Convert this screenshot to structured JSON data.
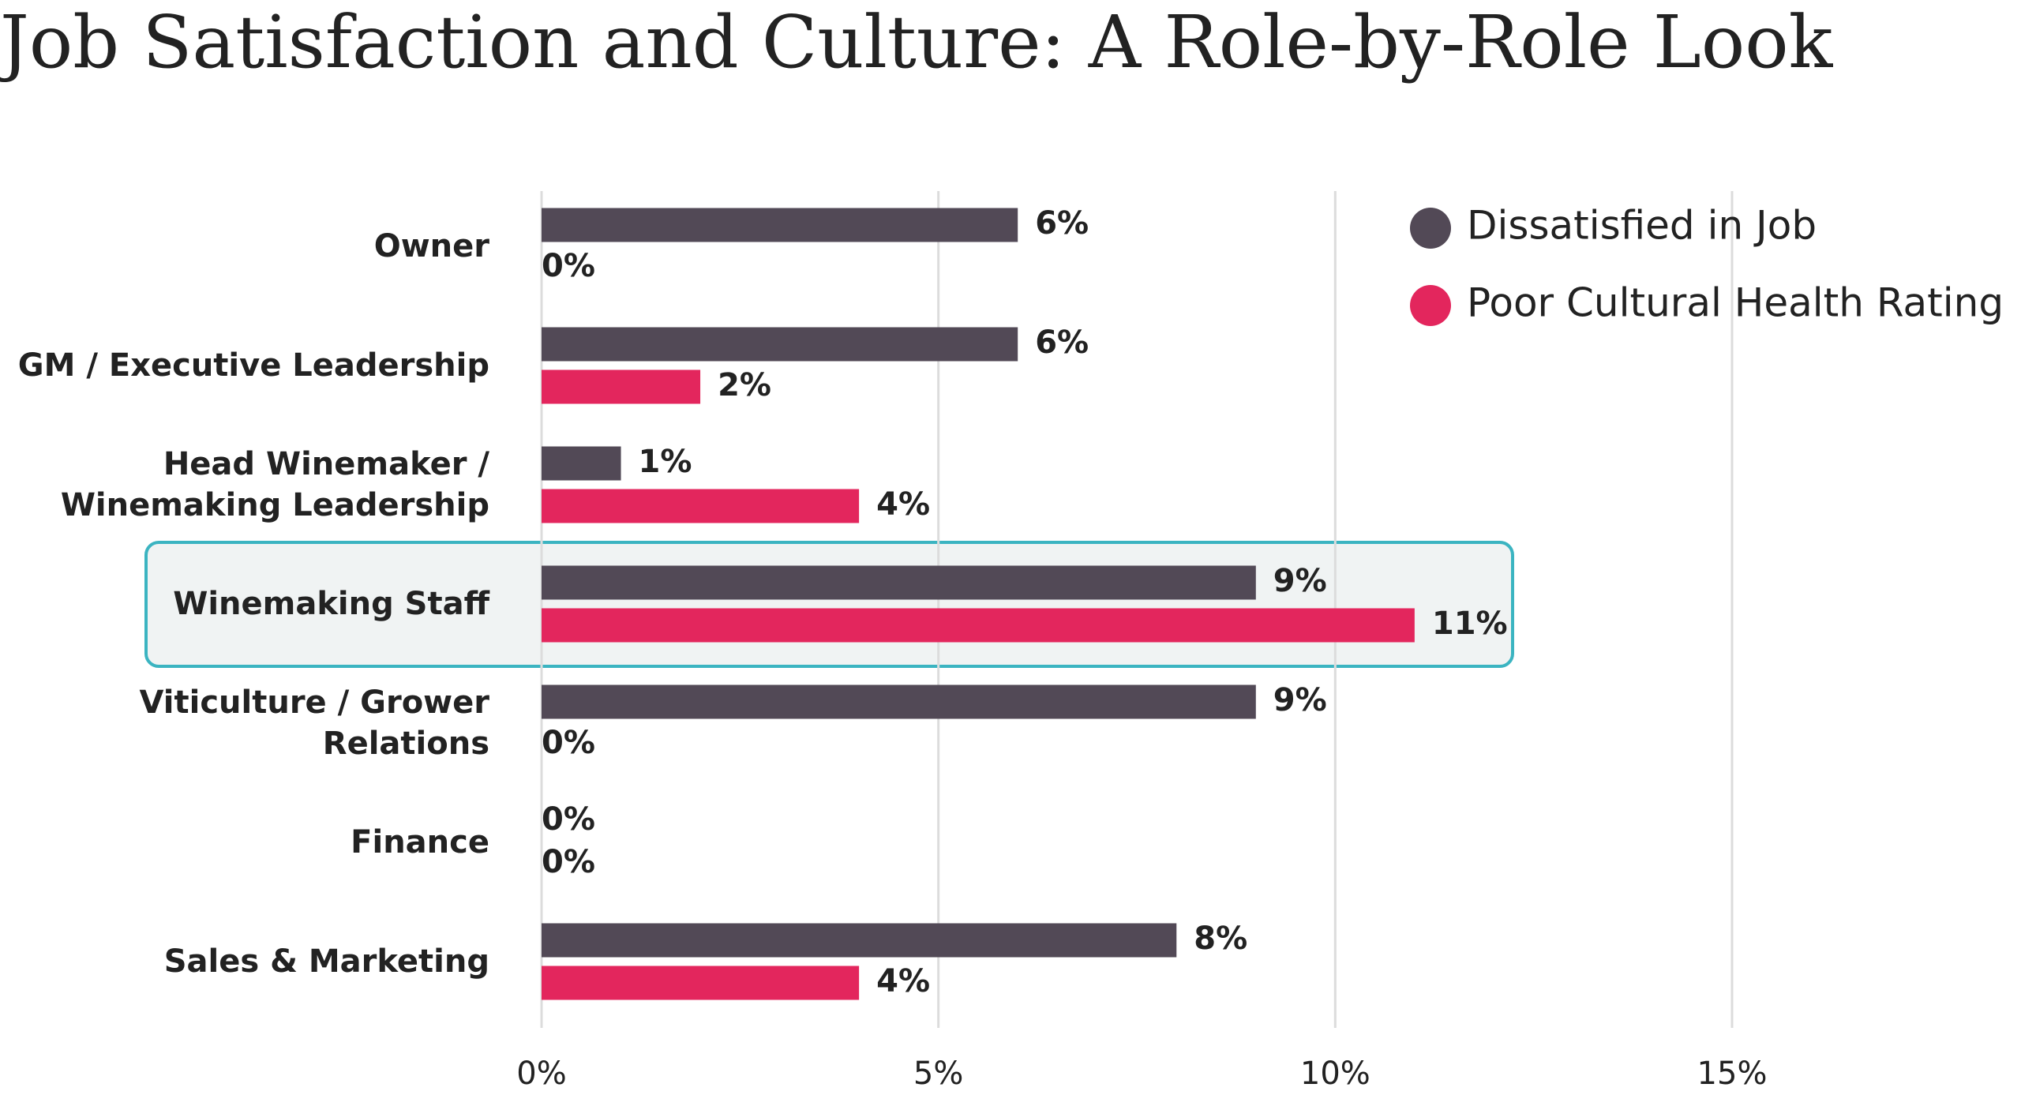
{
  "chart_data": {
    "type": "hbar",
    "title": "Job Satisfaction and Culture: A Role-by-Role Look",
    "categories": [
      "Owner",
      "GM / Executive Leadership",
      "Head Winemaker / Winemaking Leadership",
      "Winemaking Staff",
      "Viticulture / Grower Relations",
      "Finance",
      "Sales & Marketing"
    ],
    "series": [
      {
        "name": "Dissatisfied in Job",
        "color": "#524956",
        "values": [
          6,
          6,
          1,
          9,
          9,
          0,
          8
        ],
        "value_labels": [
          "6%",
          "6%",
          "1%",
          "9%",
          "9%",
          "0%",
          "8%"
        ]
      },
      {
        "name": "Poor Cultural Health Rating",
        "color": "#e3265d",
        "values": [
          0,
          2,
          4,
          11,
          0,
          0,
          4
        ],
        "value_labels": [
          "0%",
          "2%",
          "4%",
          "11%",
          "0%",
          "0%",
          "4%"
        ]
      }
    ],
    "xlim": [
      0,
      15
    ],
    "xticks": [
      {
        "value": 0,
        "label": "0%"
      },
      {
        "value": 5,
        "label": "5%"
      },
      {
        "value": 10,
        "label": "10%"
      },
      {
        "value": 15,
        "label": "15%"
      }
    ],
    "grid": true,
    "legend": "top-right"
  }
}
